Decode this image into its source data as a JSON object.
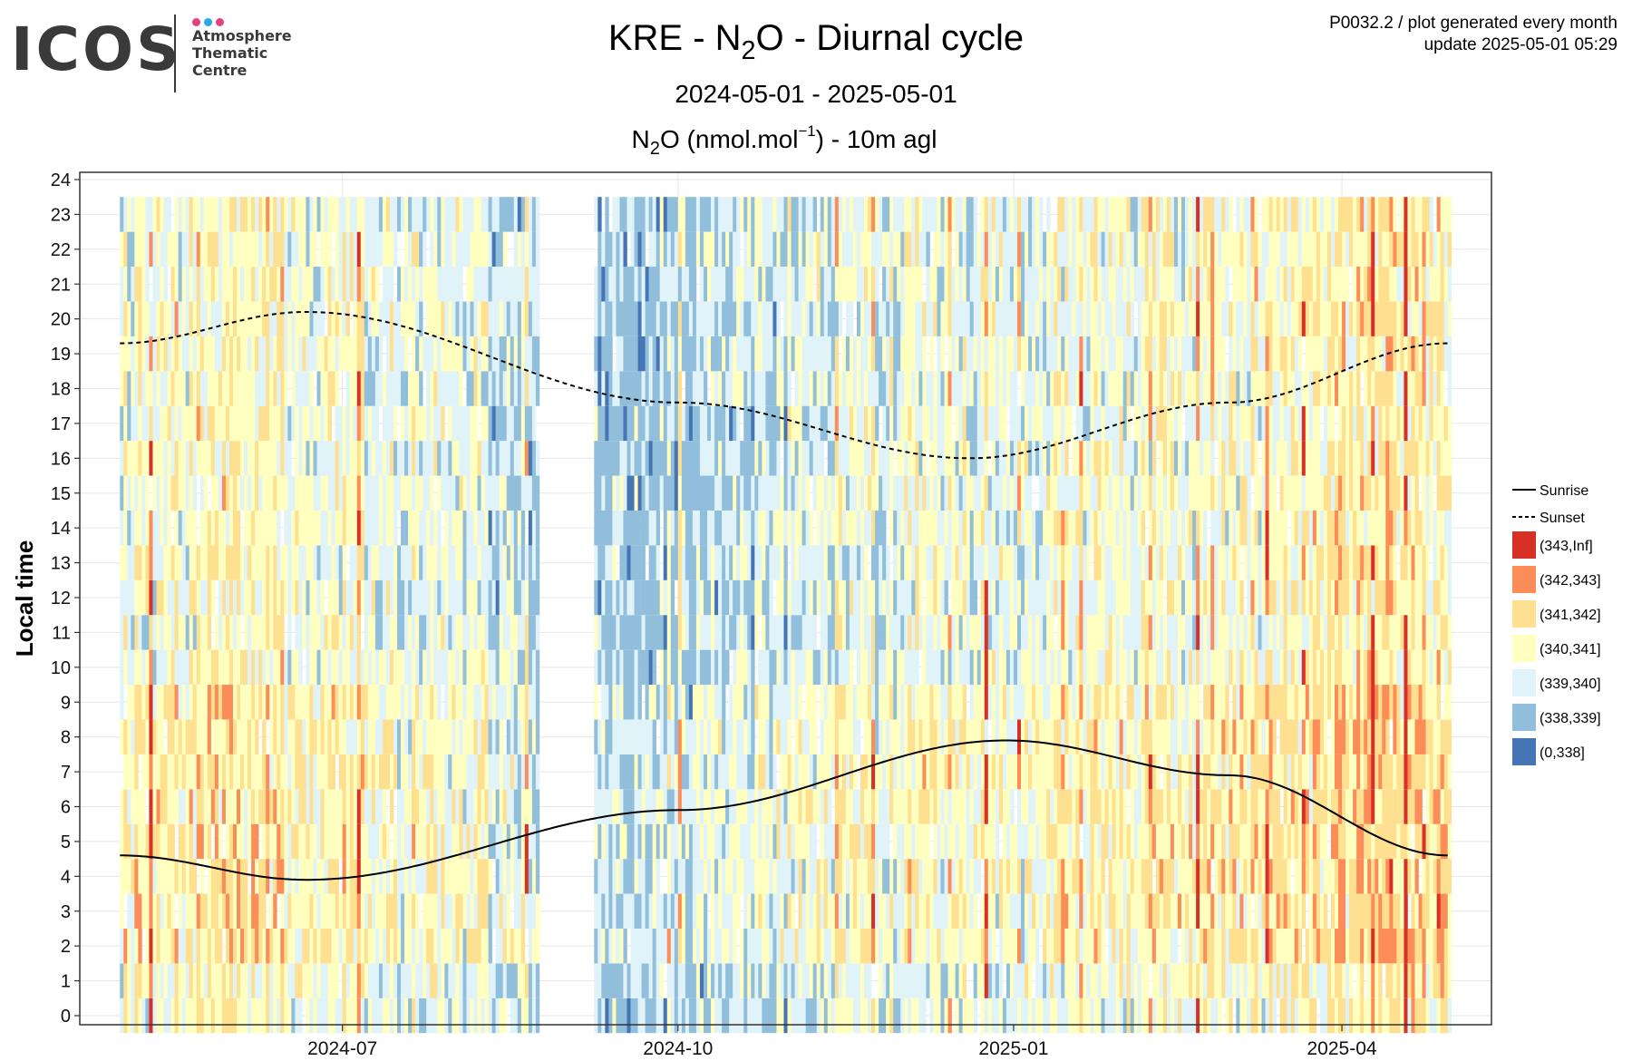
{
  "logo": {
    "word": "ICOS",
    "lines": [
      "Atmosphere",
      "Thematic",
      "Centre"
    ],
    "dot_colors": [
      "#e8407a",
      "#2aa8e0",
      "#e8407a"
    ]
  },
  "header": {
    "title_pre": "KRE - N",
    "title_sub": "2",
    "title_post": "O - Diurnal cycle",
    "date_range": "2024-05-01 - 2025-05-01",
    "unit_pre": "N",
    "unit_sub": "2",
    "unit_mid": "O (nmol.mol",
    "unit_sup": "−1",
    "unit_post": ") - 10m agl",
    "meta_line1": "P0032.2 / plot generated every month",
    "meta_line2": "update  2025-05-01 05:29"
  },
  "chart_data": {
    "type": "heatmap",
    "ylabel": "Local time",
    "xlabel": "",
    "x_range": [
      "2024-05-01",
      "2025-04-30"
    ],
    "ylim": [
      0,
      24
    ],
    "y_ticks": [
      0,
      1,
      2,
      3,
      4,
      5,
      6,
      7,
      8,
      9,
      10,
      11,
      12,
      13,
      14,
      15,
      16,
      17,
      18,
      19,
      20,
      21,
      22,
      23,
      24
    ],
    "x_ticks": [
      {
        "date": "2024-07-01",
        "label": "2024-07"
      },
      {
        "date": "2024-10-01",
        "label": "2024-10"
      },
      {
        "date": "2025-01-01",
        "label": "2025-01"
      },
      {
        "date": "2025-04-01",
        "label": "2025-04"
      }
    ],
    "gap": [
      "2024-08-24",
      "2024-09-08"
    ],
    "grid": true,
    "legend_position": "right",
    "legend_lines": [
      {
        "name": "Sunrise",
        "style": "solid"
      },
      {
        "name": "Sunset",
        "style": "dashed"
      }
    ],
    "bins": [
      {
        "label": "(343,Inf]",
        "color": "#d73027"
      },
      {
        "label": "(342,343]",
        "color": "#fc8d59"
      },
      {
        "label": "(341,342]",
        "color": "#fee090"
      },
      {
        "label": "(340,341]",
        "color": "#ffffbf"
      },
      {
        "label": "(339,340]",
        "color": "#e0f3f8"
      },
      {
        "label": "(338,339]",
        "color": "#91bfdb"
      },
      {
        "label": "(0,338]",
        "color": "#4575b4"
      }
    ],
    "sunrise": {
      "dates": [
        "2024-05-01",
        "2024-06-21",
        "2024-10-01",
        "2024-12-30",
        "2025-03-01",
        "2025-04-30"
      ],
      "hours": [
        4.6,
        3.9,
        5.9,
        7.9,
        6.9,
        4.6
      ]
    },
    "sunset": {
      "dates": [
        "2024-05-01",
        "2024-06-21",
        "2024-10-01",
        "2024-12-20",
        "2025-03-01",
        "2025-04-30"
      ],
      "hours": [
        19.3,
        20.2,
        17.6,
        16.0,
        17.6,
        19.3
      ]
    }
  }
}
